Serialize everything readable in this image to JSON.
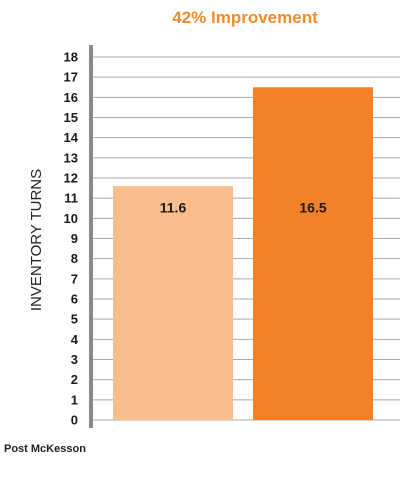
{
  "chart_data": {
    "type": "bar",
    "title": "42% Improvement",
    "ylabel": "INVENTORY TURNS",
    "xlabel": "",
    "categories": [
      "",
      ""
    ],
    "values": [
      11.6,
      16.5
    ],
    "data_labels": [
      "11.6",
      "16.5"
    ],
    "ylim": [
      0,
      18
    ],
    "yticks": [
      0,
      1,
      2,
      3,
      4,
      5,
      6,
      7,
      8,
      9,
      10,
      11,
      12,
      13,
      14,
      15,
      16,
      17,
      18
    ],
    "grid": true,
    "legend": "none"
  },
  "colors": {
    "title": "#f28b2b",
    "bars": [
      "#fbbd8c",
      "#f3812a"
    ],
    "grid": "#a8a8a8",
    "axis": "#8a8a8a"
  },
  "footer": {
    "text": "Post McKesson"
  }
}
